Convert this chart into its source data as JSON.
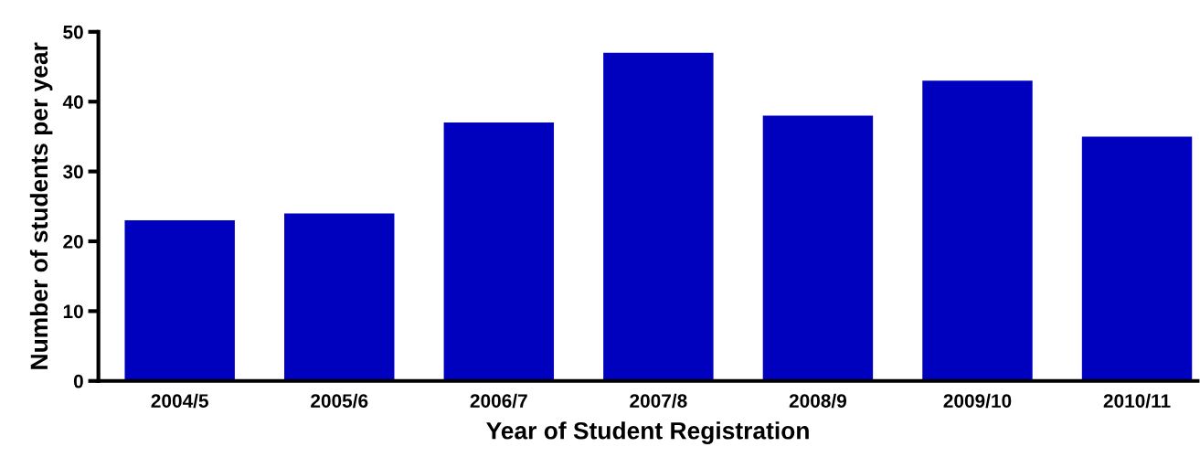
{
  "chart_data": {
    "type": "bar",
    "xlabel": "Year of Student Registration",
    "ylabel": "Number of students per year",
    "categories": [
      "2004/5",
      "2005/6",
      "2006/7",
      "2007/8",
      "2008/9",
      "2009/10",
      "2010/11"
    ],
    "values": [
      23,
      24,
      37,
      47,
      38,
      43,
      35
    ],
    "color": "#0000bf",
    "ylim": [
      0,
      50
    ],
    "yticks": [
      0,
      10,
      20,
      30,
      40,
      50
    ],
    "grid": false,
    "legend": false
  }
}
